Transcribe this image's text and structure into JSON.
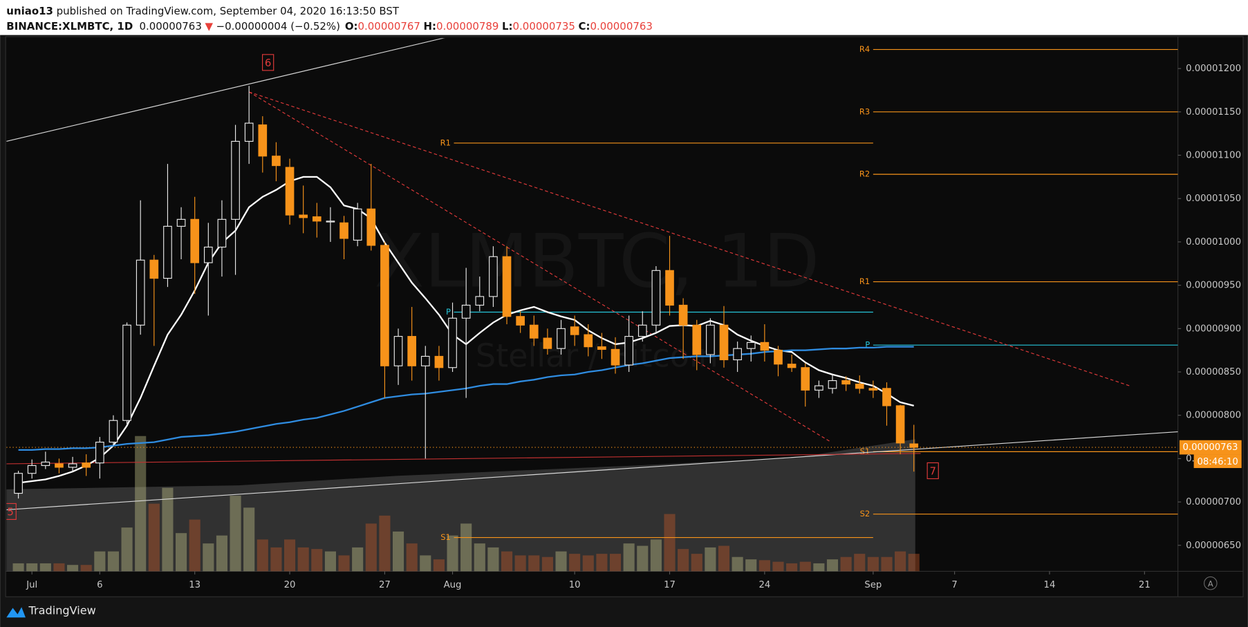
{
  "header": {
    "author": "uniao13",
    "published": "published on TradingView.com, September 04, 2020 16:13:50 BST",
    "symbol": "BINANCE:XLMBTC, 1D",
    "price": "0.00000763",
    "change_arrow": "▼",
    "change": "−0.00000004 (−0.52%)",
    "open_label": "O:",
    "open": "0.00000767",
    "high_label": "H:",
    "high": "0.00000789",
    "low_label": "L:",
    "low": "0.00000735",
    "close_label": "C:",
    "close": "0.00000763"
  },
  "chart_data": {
    "type": "candlestick",
    "watermark": "XLMBTC, 1D",
    "watermark_subtitle": "Stellar / Bitcoin",
    "xlim": [
      -0.88,
      85.46
    ],
    "xticks": [
      {
        "value": 1,
        "label": "Jul"
      },
      6,
      13,
      20,
      27,
      {
        "value": 32,
        "label": "Aug"
      },
      {
        "value": 41,
        "label": "10"
      },
      {
        "value": 48,
        "label": "17"
      },
      {
        "value": 55,
        "label": "24"
      },
      {
        "value": 63,
        "label": "Sep"
      },
      {
        "value": 69,
        "label": "7"
      },
      {
        "value": 76,
        "label": "14"
      },
      {
        "value": 83,
        "label": "21"
      }
    ],
    "ylim": [
      6.2e-06,
      1.235e-05
    ],
    "yticks": [
      {
        "value": 6.5e-06,
        "label": "0.00000650"
      },
      {
        "value": 7e-06,
        "label": "0.00000700"
      },
      {
        "value": 7.5e-06,
        "label": "0.00000750"
      },
      {
        "value": 8e-06,
        "label": "0.00000800"
      },
      {
        "value": 8.5e-06,
        "label": "0.00000850"
      },
      {
        "value": 9e-06,
        "label": "0.00000900"
      },
      {
        "value": 9.5e-06,
        "label": "0.00000950"
      },
      {
        "value": 1e-05,
        "label": "0.00001000"
      },
      {
        "value": 1.05e-05,
        "label": "0.00001050"
      },
      {
        "value": 1.1e-05,
        "label": "0.00001100"
      },
      {
        "value": 1.15e-05,
        "label": "0.00001150"
      },
      {
        "value": 1.2e-05,
        "label": "0.00001200"
      }
    ],
    "up_color": "#e8e8e8",
    "down_color": "#f7931a",
    "open": [
      7.1e-06,
      7.33e-06,
      7.42e-06,
      7.44e-06,
      7.4e-06,
      7.45e-06,
      7.45e-06,
      7.69e-06,
      7.94e-06,
      9.04e-06,
      9.79e-06,
      9.58e-06,
      1.018e-05,
      1.026e-05,
      9.76e-06,
      9.94e-06,
      1.026e-05,
      1.116e-05,
      1.135e-05,
      1.099e-05,
      1.086e-05,
      1.031e-05,
      1.029e-05,
      1.023e-05,
      1.022e-05,
      1.002e-05,
      1.038e-05,
      9.96e-06,
      8.57e-06,
      8.91e-06,
      8.57e-06,
      8.68e-06,
      8.55e-06,
      9.12e-06,
      9.27e-06,
      9.37e-06,
      9.83e-06,
      9.14e-06,
      9.04e-06,
      8.89e-06,
      8.77e-06,
      9.02e-06,
      8.93e-06,
      8.79e-06,
      8.76e-06,
      8.58e-06,
      8.91e-06,
      9.04e-06,
      9.67e-06,
      9.27e-06,
      9.04e-06,
      8.7e-06,
      9.04e-06,
      8.64e-06,
      8.77e-06,
      8.84e-06,
      8.75e-06,
      8.59e-06,
      8.55e-06,
      8.29e-06,
      8.31e-06,
      8.4e-06,
      8.36e-06,
      8.31e-06,
      8.31e-06,
      8.11e-06,
      7.67e-06
    ],
    "high": [
      7.36e-06,
      7.49e-06,
      7.58e-06,
      7.5e-06,
      7.52e-06,
      7.55e-06,
      7.75e-06,
      8e-06,
      9.07e-06,
      1.048e-05,
      9.85e-06,
      1.09e-05,
      1.04e-05,
      1.052e-05,
      1.022e-05,
      1.048e-05,
      1.135e-05,
      1.18e-05,
      1.145e-05,
      1.115e-05,
      1.096e-05,
      1.065e-05,
      1.045e-05,
      1.04e-05,
      1.03e-05,
      1.045e-05,
      1.09e-05,
      1e-05,
      9e-06,
      9.25e-06,
      8.8e-06,
      8.8e-06,
      9.3e-06,
      9.7e-06,
      9.6e-06,
      9.95e-06,
      9.95e-06,
      9.2e-06,
      9.15e-06,
      9e-06,
      9.1e-06,
      9.15e-06,
      9.05e-06,
      8.95e-06,
      8.9e-06,
      9.15e-06,
      9.2e-06,
      9.72e-06,
      1.007e-05,
      9.35e-06,
      9.1e-06,
      9.12e-06,
      9.26e-06,
      8.85e-06,
      8.92e-06,
      9.05e-06,
      8.8e-06,
      8.7e-06,
      8.6e-06,
      8.4e-06,
      8.48e-06,
      8.45e-06,
      8.46e-06,
      8.4e-06,
      8.38e-06,
      8.12e-06,
      7.89e-06
    ],
    "low": [
      7.04e-06,
      7.27e-06,
      7.38e-06,
      7.33e-06,
      7.35e-06,
      7.3e-06,
      7.27e-06,
      7.65e-06,
      7.9e-06,
      8.93e-06,
      8.8e-06,
      9.48e-06,
      9.8e-06,
      9.4e-06,
      9.15e-06,
      9.6e-06,
      9.62e-06,
      1.09e-05,
      1.08e-05,
      1.07e-05,
      1.02e-05,
      1.01e-05,
      1.005e-05,
      1e-05,
      9.8e-06,
      9.95e-06,
      9.9e-06,
      8.2e-06,
      8.35e-06,
      8.4e-06,
      7.5e-06,
      8.4e-06,
      8.5e-06,
      8.2e-06,
      9.2e-06,
      9.25e-06,
      9.05e-06,
      8.95e-06,
      8.8e-06,
      8.7e-06,
      8.7e-06,
      8.8e-06,
      8.68e-06,
      8.65e-06,
      8.48e-06,
      8.5e-06,
      8.85e-06,
      8.95e-06,
      9.15e-06,
      8.65e-06,
      8.52e-06,
      8.6e-06,
      8.55e-06,
      8.5e-06,
      8.62e-06,
      8.62e-06,
      8.45e-06,
      8.5e-06,
      8.1e-06,
      8.2e-06,
      8.25e-06,
      8.28e-06,
      8.25e-06,
      8.2e-06,
      7.88e-06,
      7.55e-06,
      7.35e-06
    ],
    "close": [
      7.33e-06,
      7.42e-06,
      7.46e-06,
      7.4e-06,
      7.44e-06,
      7.4e-06,
      7.69e-06,
      7.94e-06,
      9.04e-06,
      9.79e-06,
      9.58e-06,
      1.018e-05,
      1.026e-05,
      9.76e-06,
      9.94e-06,
      1.026e-05,
      1.116e-05,
      1.137e-05,
      1.099e-05,
      1.088e-05,
      1.031e-05,
      1.028e-05,
      1.024e-05,
      1.024e-05,
      1.004e-05,
      1.038e-05,
      9.96e-06,
      8.57e-06,
      8.91e-06,
      8.57e-06,
      8.68e-06,
      8.55e-06,
      9.12e-06,
      9.27e-06,
      9.37e-06,
      9.83e-06,
      9.14e-06,
      9.04e-06,
      8.89e-06,
      8.77e-06,
      9e-06,
      8.93e-06,
      8.79e-06,
      8.76e-06,
      8.58e-06,
      8.91e-06,
      9.04e-06,
      9.67e-06,
      9.27e-06,
      9.04e-06,
      8.7e-06,
      9.04e-06,
      8.64e-06,
      8.77e-06,
      8.84e-06,
      8.75e-06,
      8.59e-06,
      8.55e-06,
      8.29e-06,
      8.34e-06,
      8.4e-06,
      8.36e-06,
      8.31e-06,
      8.29e-06,
      8.11e-06,
      7.68e-06,
      7.63e-06
    ],
    "volume": [
      10,
      10,
      10,
      10,
      8,
      8,
      25,
      25,
      55,
      170,
      85,
      105,
      48,
      65,
      35,
      45,
      95,
      80,
      40,
      30,
      40,
      30,
      28,
      25,
      20,
      30,
      60,
      70,
      50,
      35,
      20,
      15,
      45,
      60,
      35,
      30,
      25,
      20,
      20,
      18,
      25,
      22,
      20,
      22,
      22,
      35,
      32,
      40,
      72,
      28,
      22,
      30,
      32,
      18,
      15,
      14,
      12,
      10,
      12,
      10,
      15,
      18,
      22,
      18,
      18,
      25,
      22
    ],
    "ma": [
      {
        "color": "#ffffff",
        "values": [
          7.22e-06,
          7.24e-06,
          7.26e-06,
          7.3e-06,
          7.35e-06,
          7.42e-06,
          7.51e-06,
          7.65e-06,
          7.88e-06,
          8.2e-06,
          8.57e-06,
          8.93e-06,
          9.16e-06,
          9.44e-06,
          9.76e-06,
          9.99e-06,
          1.013e-05,
          1.04e-05,
          1.052e-05,
          1.06e-05,
          1.07e-05,
          1.075e-05,
          1.075e-05,
          1.063e-05,
          1.042e-05,
          1.038e-05,
          1.027e-05,
          9.99e-06,
          9.76e-06,
          9.53e-06,
          9.35e-06,
          9.16e-06,
          8.93e-06,
          8.82e-06,
          8.95e-06,
          9.07e-06,
          9.16e-06,
          9.21e-06,
          9.25e-06,
          9.19e-06,
          9.14e-06,
          9.1e-06,
          8.98e-06,
          8.89e-06,
          8.82e-06,
          8.84e-06,
          8.89e-06,
          8.95e-06,
          9.03e-06,
          9.04e-06,
          9.03e-06,
          9.09e-06,
          9.04e-06,
          8.93e-06,
          8.86e-06,
          8.8e-06,
          8.75e-06,
          8.73e-06,
          8.61e-06,
          8.52e-06,
          8.47e-06,
          8.43e-06,
          8.38e-06,
          8.34e-06,
          8.25e-06,
          8.15e-06,
          8.11e-06
        ]
      },
      {
        "color": "#2f8ce0",
        "values": [
          7.6e-06,
          7.6e-06,
          7.61e-06,
          7.61e-06,
          7.62e-06,
          7.62e-06,
          7.63e-06,
          7.65e-06,
          7.67e-06,
          7.68e-06,
          7.69e-06,
          7.72e-06,
          7.75e-06,
          7.76e-06,
          7.77e-06,
          7.79e-06,
          7.81e-06,
          7.84e-06,
          7.87e-06,
          7.9e-06,
          7.92e-06,
          7.95e-06,
          7.97e-06,
          8.01e-06,
          8.05e-06,
          8.1e-06,
          8.15e-06,
          8.2e-06,
          8.22e-06,
          8.24e-06,
          8.25e-06,
          8.27e-06,
          8.29e-06,
          8.31e-06,
          8.34e-06,
          8.36e-06,
          8.36e-06,
          8.39e-06,
          8.41e-06,
          8.44e-06,
          8.46e-06,
          8.47e-06,
          8.5e-06,
          8.52e-06,
          8.55e-06,
          8.58e-06,
          8.6e-06,
          8.63e-06,
          8.66e-06,
          8.67e-06,
          8.68e-06,
          8.68e-06,
          8.69e-06,
          8.7e-06,
          8.71e-06,
          8.73e-06,
          8.74e-06,
          8.75e-06,
          8.75e-06,
          8.76e-06,
          8.77e-06,
          8.77e-06,
          8.78e-06,
          8.78e-06,
          8.79e-06,
          8.79e-06,
          8.79e-06
        ]
      }
    ],
    "pivots": [
      {
        "color": "#f7931a",
        "x_range": [
          32.1,
          63
        ],
        "levels": [
          {
            "label": "R1",
            "value": 1.114e-05
          },
          {
            "label": "P",
            "value": 9.19e-06,
            "color": "#26c6da"
          },
          {
            "label": "S1",
            "value": 6.59e-06
          }
        ]
      },
      {
        "color": "#f7931a",
        "x_range": [
          63,
          85.46
        ],
        "levels": [
          {
            "label": "R4",
            "value": 1.222e-05
          },
          {
            "label": "R3",
            "value": 1.15e-05
          },
          {
            "label": "R2",
            "value": 1.078e-05
          },
          {
            "label": "R1",
            "value": 9.54e-06
          },
          {
            "label": "P",
            "value": 8.81e-06,
            "color": "#26c6da"
          },
          {
            "label": "S1",
            "value": 7.58e-06
          },
          {
            "label": "S2",
            "value": 6.86e-06
          }
        ]
      }
    ],
    "trend_lines": [
      {
        "color": "#d8d8d8",
        "dash": false,
        "x": [
          -0.88,
          32.1
        ],
        "values": [
          1.116e-05,
          1.238e-05
        ]
      },
      {
        "color": "#e03a3a",
        "dash": true,
        "x": [
          17,
          81.9
        ],
        "values": [
          1.173e-05,
          8.34e-06
        ]
      },
      {
        "color": "#e03a3a",
        "dash": true,
        "x": [
          17,
          59.9
        ],
        "values": [
          1.173e-05,
          7.69e-06
        ]
      },
      {
        "color": "#d8d8d8",
        "dash": false,
        "x": [
          -0.88,
          85.46
        ],
        "values": [
          6.91e-06,
          7.81e-06
        ]
      },
      {
        "color": "#c03030",
        "dash": false,
        "x": [
          -0.88,
          66.5
        ],
        "values": [
          7.44e-06,
          7.56e-06
        ]
      }
    ],
    "annotations": [
      {
        "label": "6",
        "x": 18.4,
        "value": 1.207e-05,
        "color": "#e03a3a"
      },
      {
        "label": "7",
        "x": 67.4,
        "value": 7.36e-06,
        "color": "#e03a3a"
      },
      {
        "label": "5",
        "x": -0.58,
        "value": 6.89e-06,
        "color": "#e03a3a"
      }
    ],
    "last_price": {
      "value": 7.63e-06,
      "label": "0.00000763",
      "countdown": "08:46:10",
      "color": "#f7931a"
    }
  },
  "footer": {
    "brand": "TradingView",
    "button": "A"
  }
}
